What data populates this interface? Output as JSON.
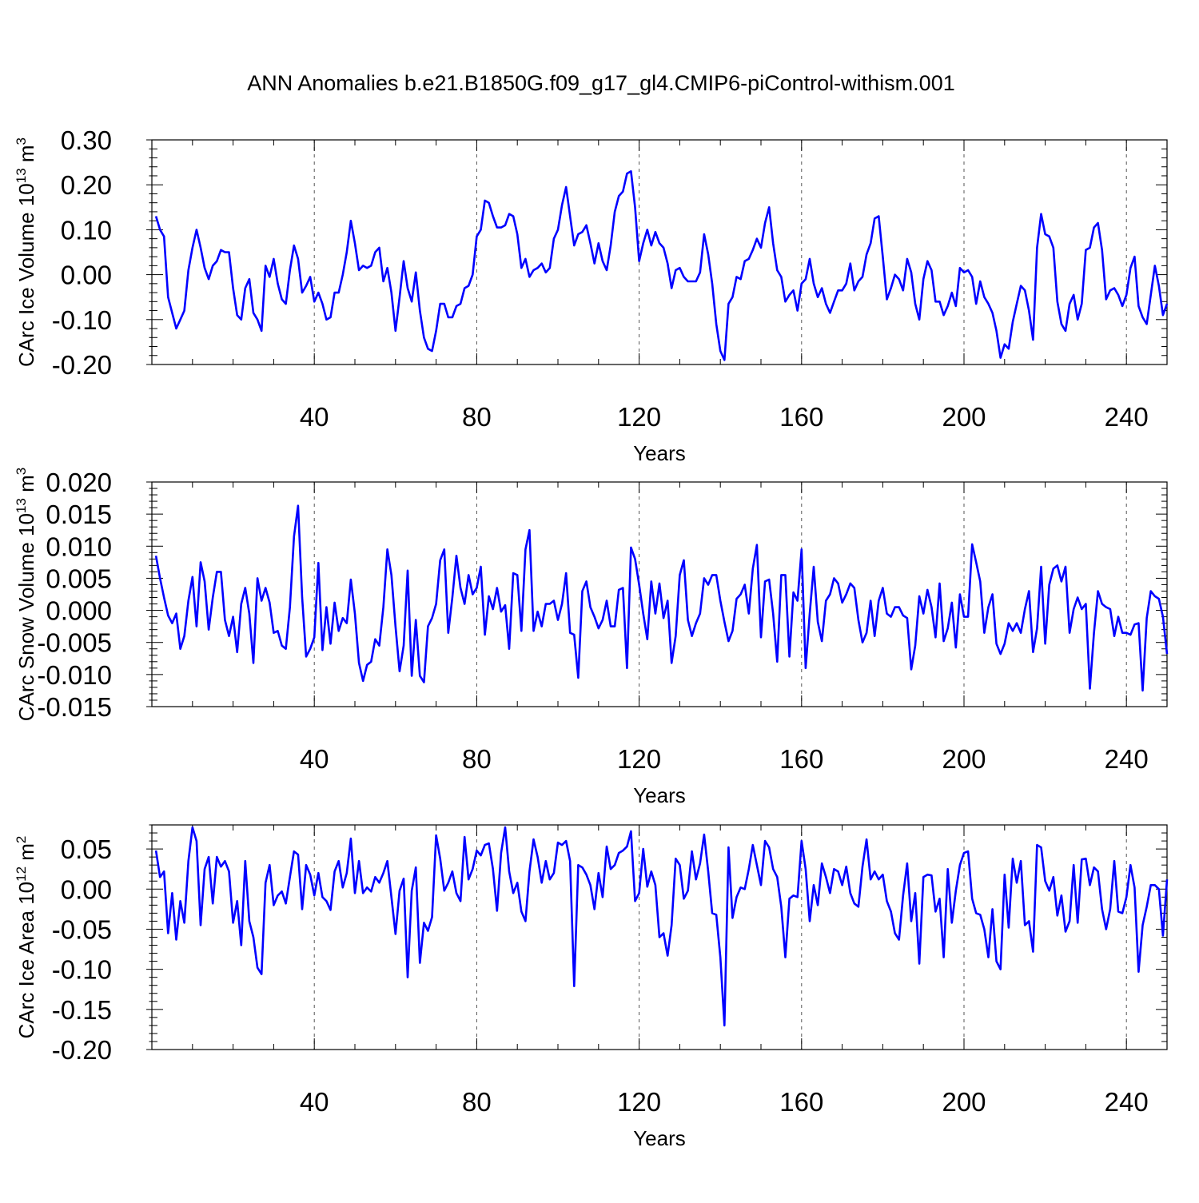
{
  "title": "ANN Anomalies b.e21.B1850G.f09_g17_gl4.CMIP6-piControl-withism.001",
  "line_color": "#0000ff",
  "chart_data": [
    {
      "type": "line",
      "name": "ice-volume",
      "ylabel_main": "CArc Ice Volume 10",
      "ylabel_exp": "13",
      "ylabel_unit": " m",
      "ylabel_unit_exp": "3",
      "xlabel": "Years",
      "xlim": [
        0,
        250
      ],
      "ylim": [
        -0.2,
        0.3
      ],
      "yticks": [
        -0.2,
        -0.1,
        0.0,
        0.1,
        0.2,
        0.3
      ],
      "ytick_labels": [
        "-0.20",
        "-0.10",
        "0.00",
        "0.10",
        "0.20",
        "0.30"
      ],
      "xticks": [
        40,
        80,
        120,
        160,
        200,
        240
      ],
      "xtick_labels": [
        "40",
        "80",
        "120",
        "160",
        "200",
        "240"
      ],
      "grid_x": true,
      "series": [
        {
          "name": "CArc Ice Volume",
          "x_start": 1,
          "values": [
            0.13,
            0.1,
            0.085,
            -0.05,
            -0.085,
            -0.12,
            -0.1,
            -0.08,
            0.01,
            0.06,
            0.1,
            0.06,
            0.015,
            -0.01,
            0.02,
            0.03,
            0.055,
            0.05,
            0.05,
            -0.03,
            -0.09,
            -0.1,
            -0.03,
            -0.01,
            -0.085,
            -0.1,
            -0.125,
            0.02,
            -0.005,
            0.035,
            -0.02,
            -0.055,
            -0.065,
            0.01,
            0.065,
            0.035,
            -0.04,
            -0.025,
            -0.005,
            -0.06,
            -0.04,
            -0.065,
            -0.1,
            -0.095,
            -0.04,
            -0.04,
            0.0,
            0.05,
            0.12,
            0.07,
            0.01,
            0.02,
            0.015,
            0.02,
            0.05,
            0.06,
            -0.015,
            0.015,
            -0.04,
            -0.125,
            -0.05,
            0.03,
            -0.03,
            -0.06,
            0.005,
            -0.08,
            -0.14,
            -0.165,
            -0.17,
            -0.125,
            -0.065,
            -0.065,
            -0.095,
            -0.095,
            -0.07,
            -0.065,
            -0.03,
            -0.025,
            0.0,
            0.085,
            0.1,
            0.165,
            0.16,
            0.13,
            0.105,
            0.105,
            0.11,
            0.135,
            0.13,
            0.09,
            0.015,
            0.035,
            -0.005,
            0.01,
            0.015,
            0.025,
            0.005,
            0.015,
            0.08,
            0.1,
            0.155,
            0.195,
            0.13,
            0.065,
            0.09,
            0.095,
            0.11,
            0.07,
            0.025,
            0.07,
            0.03,
            0.01,
            0.065,
            0.14,
            0.175,
            0.185,
            0.225,
            0.23,
            0.15,
            0.03,
            0.07,
            0.1,
            0.065,
            0.095,
            0.07,
            0.06,
            0.025,
            -0.03,
            0.01,
            0.015,
            -0.005,
            -0.015,
            -0.015,
            -0.015,
            0.005,
            0.09,
            0.045,
            -0.02,
            -0.11,
            -0.17,
            -0.19,
            -0.065,
            -0.05,
            -0.005,
            -0.01,
            0.03,
            0.035,
            0.055,
            0.08,
            0.06,
            0.115,
            0.15,
            0.07,
            0.01,
            -0.005,
            -0.06,
            -0.045,
            -0.035,
            -0.08,
            -0.02,
            -0.01,
            0.035,
            -0.02,
            -0.05,
            -0.03,
            -0.065,
            -0.085,
            -0.06,
            -0.035,
            -0.035,
            -0.02,
            0.025,
            -0.035,
            -0.015,
            -0.005,
            0.045,
            0.07,
            0.125,
            0.13,
            0.04,
            -0.055,
            -0.03,
            0.0,
            -0.01,
            -0.035,
            0.035,
            0.005,
            -0.065,
            -0.1,
            -0.01,
            0.03,
            0.01,
            -0.06,
            -0.06,
            -0.09,
            -0.07,
            -0.04,
            -0.07,
            0.015,
            0.005,
            0.01,
            -0.005,
            -0.065,
            -0.015,
            -0.05,
            -0.065,
            -0.085,
            -0.125,
            -0.185,
            -0.155,
            -0.165,
            -0.105,
            -0.065,
            -0.025,
            -0.035,
            -0.08,
            -0.145,
            0.06,
            0.135,
            0.09,
            0.085,
            0.06,
            -0.06,
            -0.11,
            -0.125,
            -0.065,
            -0.045,
            -0.1,
            -0.065,
            0.055,
            0.06,
            0.105,
            0.115,
            0.055,
            -0.055,
            -0.035,
            -0.03,
            -0.045,
            -0.07,
            -0.045,
            0.015,
            0.04,
            -0.07,
            -0.095,
            -0.11,
            -0.045,
            0.02,
            -0.025,
            -0.09,
            -0.065
          ]
        }
      ]
    },
    {
      "type": "line",
      "name": "snow-volume",
      "ylabel_main": "CArc Snow Volume 10",
      "ylabel_exp": "13",
      "ylabel_unit": " m",
      "ylabel_unit_exp": "3",
      "xlabel": "Years",
      "xlim": [
        0,
        250
      ],
      "ylim": [
        -0.015,
        0.02
      ],
      "yticks": [
        -0.015,
        -0.01,
        -0.005,
        0.0,
        0.005,
        0.01,
        0.015,
        0.02
      ],
      "ytick_labels": [
        "-0.015",
        "-0.010",
        "-0.005",
        "0.000",
        "0.005",
        "0.010",
        "0.015",
        "0.020"
      ],
      "xticks": [
        40,
        80,
        120,
        160,
        200,
        240
      ],
      "xtick_labels": [
        "40",
        "80",
        "120",
        "160",
        "200",
        "240"
      ],
      "grid_x": true,
      "series": [
        {
          "name": "CArc Snow Volume",
          "x_start": 1,
          "values": [
            0.0085,
            0.005,
            0.002,
            -0.0008,
            -0.002,
            -0.0005,
            -0.006,
            -0.004,
            0.0015,
            0.0052,
            -0.0025,
            0.0075,
            0.0045,
            -0.003,
            0.002,
            0.006,
            0.006,
            -0.0015,
            -0.004,
            -0.001,
            -0.0065,
            0.001,
            0.0035,
            -0.0005,
            -0.0082,
            0.005,
            0.0015,
            0.0035,
            0.0012,
            -0.0035,
            -0.0032,
            -0.0055,
            -0.006,
            0.0005,
            0.0115,
            0.0163,
            0.002,
            -0.0072,
            -0.006,
            -0.0042,
            0.0074,
            -0.0062,
            0.0005,
            -0.0052,
            0.0012,
            -0.0032,
            -0.0012,
            -0.002,
            0.0048,
            -0.0005,
            -0.0082,
            -0.011,
            -0.0085,
            -0.008,
            -0.0045,
            -0.0055,
            0.0005,
            0.0095,
            0.0055,
            -0.0025,
            -0.0095,
            -0.0055,
            0.0062,
            -0.0102,
            -0.0015,
            -0.0102,
            -0.0112,
            -0.0025,
            -0.0012,
            0.001,
            0.0078,
            0.0095,
            -0.0035,
            0.002,
            0.0085,
            0.0035,
            0.001,
            0.0055,
            0.0025,
            0.0035,
            0.0068,
            -0.0038,
            0.0022,
            0.0002,
            0.0035,
            -0.0002,
            0.0008,
            -0.006,
            0.0058,
            0.0055,
            -0.0032,
            0.0095,
            0.0125,
            -0.0032,
            -0.0002,
            -0.0025,
            0.001,
            0.001,
            0.0015,
            -0.0015,
            0.001,
            0.0058,
            -0.0035,
            -0.0038,
            -0.0105,
            0.003,
            0.0045,
            0.0005,
            -0.001,
            -0.0028,
            -0.0015,
            0.0015,
            -0.0025,
            -0.0025,
            0.0032,
            0.0035,
            -0.009,
            0.0098,
            0.008,
            0.004,
            -0.0005,
            -0.0045,
            0.0045,
            -0.0005,
            0.0042,
            -0.0012,
            0.0015,
            -0.0082,
            -0.004,
            0.0055,
            0.0078,
            -0.0015,
            -0.004,
            -0.002,
            -0.0005,
            0.005,
            0.004,
            0.0055,
            0.0055,
            0.0015,
            -0.0018,
            -0.0048,
            -0.0032,
            0.0018,
            0.0025,
            0.004,
            -0.0005,
            0.0065,
            0.0102,
            -0.0042,
            0.0045,
            0.0048,
            -0.0005,
            -0.008,
            0.0055,
            0.0055,
            -0.0072,
            0.0028,
            0.0015,
            0.0095,
            -0.009,
            -0.0005,
            0.0068,
            -0.0018,
            -0.0048,
            0.0015,
            0.0025,
            0.005,
            0.0042,
            0.0012,
            0.0025,
            0.0042,
            0.0035,
            -0.0015,
            -0.005,
            -0.0035,
            0.0015,
            -0.004,
            0.0015,
            0.0035,
            -0.0005,
            -0.001,
            0.0005,
            0.0005,
            -0.0008,
            -0.0012,
            -0.0092,
            -0.0055,
            0.0022,
            -0.0005,
            0.0032,
            0.0005,
            -0.0042,
            0.0042,
            -0.0048,
            -0.0028,
            0.0012,
            -0.0058,
            0.0025,
            -0.001,
            -0.001,
            0.0103,
            0.0075,
            0.0045,
            -0.0035,
            0.0005,
            0.0025,
            -0.0052,
            -0.0068,
            -0.0052,
            -0.002,
            -0.0032,
            -0.002,
            -0.0035,
            0.0002,
            0.003,
            -0.0065,
            -0.0028,
            0.0068,
            -0.0052,
            0.004,
            0.0065,
            0.007,
            0.0045,
            0.0068,
            -0.0035,
            0.0002,
            0.002,
            0.0002,
            0.001,
            -0.0122,
            -0.0035,
            0.003,
            0.001,
            0.0005,
            0.0002,
            -0.004,
            -0.001,
            -0.0035,
            -0.0035,
            -0.0038,
            -0.0022,
            -0.002,
            -0.0125,
            -0.0012,
            0.003,
            0.0022,
            0.0018,
            -0.001,
            -0.0068
          ]
        }
      ]
    },
    {
      "type": "line",
      "name": "ice-area",
      "ylabel_main": "CArc Ice Area 10",
      "ylabel_exp": "12",
      "ylabel_unit": " m",
      "ylabel_unit_exp": "2",
      "xlabel": "Years",
      "xlim": [
        0,
        250
      ],
      "ylim": [
        -0.2,
        0.08
      ],
      "yticks": [
        -0.2,
        -0.15,
        -0.1,
        -0.05,
        0.0,
        0.05
      ],
      "ytick_labels": [
        "-0.20",
        "-0.15",
        "-0.10",
        "-0.05",
        "0.00",
        "0.05"
      ],
      "xticks": [
        40,
        80,
        120,
        160,
        200,
        240
      ],
      "xtick_labels": [
        "40",
        "80",
        "120",
        "160",
        "200",
        "240"
      ],
      "grid_x": true,
      "series": [
        {
          "name": "CArc Ice Area",
          "x_start": 1,
          "values": [
            0.048,
            0.015,
            0.022,
            -0.055,
            -0.005,
            -0.063,
            -0.015,
            -0.042,
            0.035,
            0.077,
            0.06,
            -0.045,
            0.025,
            0.04,
            -0.018,
            0.04,
            0.028,
            0.035,
            0.022,
            -0.042,
            -0.015,
            -0.07,
            0.035,
            -0.04,
            -0.06,
            -0.098,
            -0.106,
            0.008,
            0.03,
            -0.02,
            -0.008,
            -0.003,
            -0.018,
            0.015,
            0.047,
            0.043,
            -0.025,
            0.03,
            0.018,
            -0.008,
            0.02,
            -0.01,
            -0.015,
            -0.026,
            0.022,
            0.035,
            0.002,
            0.02,
            0.063,
            -0.005,
            0.035,
            -0.005,
            0.002,
            -0.003,
            0.015,
            0.008,
            0.02,
            0.035,
            -0.01,
            -0.056,
            -0.002,
            0.013,
            -0.11,
            -0.002,
            0.027,
            -0.092,
            -0.042,
            -0.052,
            -0.035,
            0.067,
            0.038,
            -0.002,
            0.008,
            0.022,
            -0.005,
            -0.015,
            0.065,
            0.012,
            0.025,
            0.048,
            0.042,
            0.055,
            0.057,
            0.025,
            -0.027,
            0.045,
            0.077,
            0.022,
            -0.005,
            0.008,
            -0.028,
            -0.04,
            0.022,
            0.062,
            0.04,
            0.008,
            0.035,
            0.012,
            0.02,
            0.058,
            0.055,
            0.06,
            0.035,
            -0.121,
            0.03,
            0.027,
            0.018,
            0.005,
            -0.025,
            0.02,
            -0.01,
            0.053,
            0.025,
            0.03,
            0.045,
            0.048,
            0.053,
            0.072,
            -0.015,
            -0.005,
            0.05,
            0.003,
            0.022,
            0.005,
            -0.06,
            -0.055,
            -0.083,
            -0.045,
            0.038,
            0.03,
            -0.012,
            -0.002,
            0.047,
            0.012,
            0.032,
            0.068,
            0.022,
            -0.03,
            -0.032,
            -0.085,
            -0.17,
            0.052,
            -0.036,
            -0.01,
            0.002,
            0.0,
            0.025,
            0.055,
            0.03,
            0.005,
            0.06,
            0.052,
            0.025,
            0.015,
            -0.022,
            -0.085,
            -0.012,
            -0.008,
            -0.01,
            0.06,
            0.025,
            -0.04,
            0.005,
            -0.02,
            0.032,
            0.015,
            -0.005,
            0.025,
            0.022,
            0.005,
            0.028,
            -0.005,
            -0.018,
            -0.022,
            0.028,
            0.062,
            0.012,
            0.022,
            0.012,
            0.018,
            -0.015,
            -0.028,
            -0.055,
            -0.063,
            -0.008,
            0.032,
            -0.04,
            -0.005,
            -0.093,
            0.015,
            0.018,
            0.017,
            -0.028,
            -0.012,
            -0.085,
            0.025,
            -0.042,
            -0.002,
            0.03,
            0.045,
            0.047,
            -0.012,
            -0.03,
            -0.032,
            -0.05,
            -0.085,
            -0.025,
            -0.09,
            -0.1,
            0.018,
            -0.048,
            0.038,
            0.008,
            0.035,
            -0.045,
            -0.04,
            -0.078,
            0.055,
            0.052,
            0.01,
            -0.002,
            0.015,
            -0.033,
            -0.008,
            -0.053,
            -0.04,
            0.03,
            -0.042,
            0.037,
            0.038,
            0.005,
            0.027,
            0.022,
            -0.025,
            -0.05,
            -0.025,
            0.035,
            -0.028,
            -0.03,
            -0.01,
            0.03,
            0.002,
            -0.103,
            -0.045,
            -0.022,
            0.005,
            0.005,
            0.0,
            -0.058,
            0.012
          ]
        }
      ]
    }
  ]
}
